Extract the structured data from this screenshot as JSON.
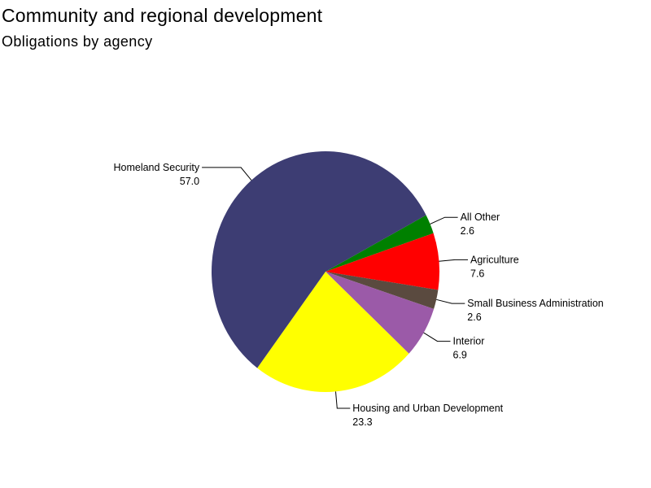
{
  "title": "Community and regional development",
  "subtitle": "Obligations by agency",
  "chart_data": {
    "type": "pie",
    "title": "Community and regional development",
    "subtitle": "Obligations by agency",
    "slices": [
      {
        "label": "All Other",
        "value": 2.6,
        "value_label": "2.6",
        "color": "#008000"
      },
      {
        "label": "Agriculture",
        "value": 7.6,
        "value_label": "7.6",
        "color": "#ff0000"
      },
      {
        "label": "Small Business Administration",
        "value": 2.6,
        "value_label": "2.6",
        "color": "#5a4a3f"
      },
      {
        "label": "Interior",
        "value": 6.9,
        "value_label": "6.9",
        "color": "#9b5aa8"
      },
      {
        "label": "Housing and Urban Development",
        "value": 23.3,
        "value_label": "23.3",
        "color": "#ffff00"
      },
      {
        "label": "Homeland Security",
        "value": 57.0,
        "value_label": "57.0",
        "color": "#3d3d73"
      }
    ]
  }
}
